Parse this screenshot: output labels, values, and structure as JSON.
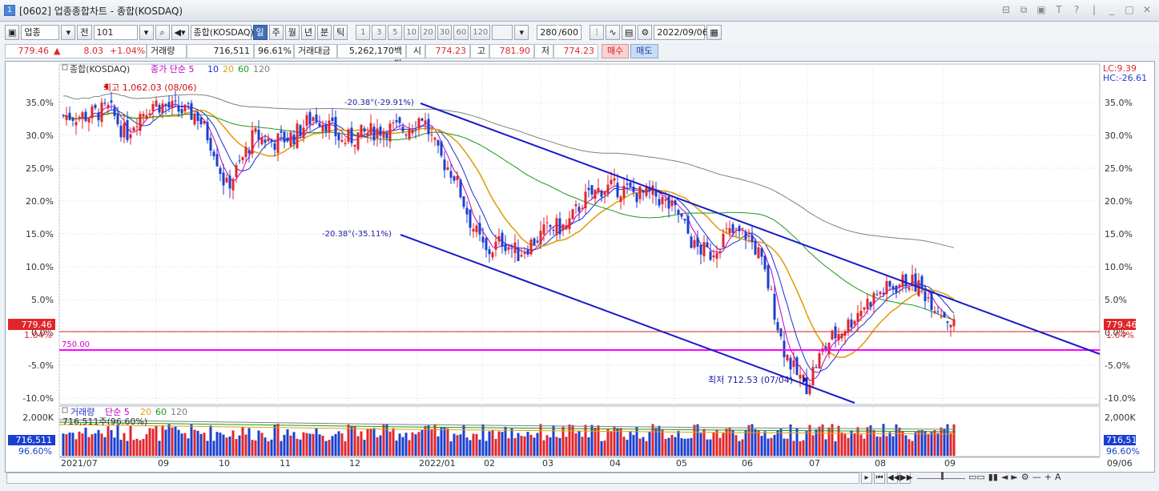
{
  "window": {
    "num": "1",
    "title": "[0602] 업종종합차트 - 종합(KOSDAQ)"
  },
  "toolbar": {
    "market": "업종",
    "prev": "전",
    "code": "101",
    "name": "종합(KOSDAQ)",
    "periods": [
      "일",
      "주",
      "월",
      "년",
      "분",
      "틱"
    ],
    "active_period": "일",
    "intervals": [
      "1",
      "3",
      "5",
      "10",
      "20",
      "30",
      "60",
      "120"
    ],
    "count": "280",
    "count_total": "/600",
    "date": "2022/09/06"
  },
  "info": {
    "price": "779.46",
    "arrow": "▲",
    "change": "8.03",
    "rate": "+1.04%",
    "vol_label": "거래량",
    "volume": "716,511",
    "vol_ratio": "96.61%",
    "amt_label": "거래대금",
    "amount": "5,262,170백만",
    "open_label": "시",
    "open": "774.23",
    "high_label": "고",
    "high": "781.90",
    "low_label": "저",
    "low": "774.23",
    "buy": "매수",
    "sell": "매도"
  },
  "price_panel": {
    "legend_title": "종합(KOSDAQ)",
    "legend_ma": "종가 단순 5",
    "ma_periods": [
      "10",
      "20",
      "60",
      "120"
    ],
    "ma_colors": [
      "#c000c0",
      "#1a2fcf",
      "#e0a010",
      "#1a9a1a",
      "#808080"
    ],
    "lc": "LC:9.39",
    "hc": "HC:-26.61",
    "high_label": "최고 1,062.03 (08/06)",
    "low_label": "최저 712.53 (07/04)",
    "trend1_label": "-20.38°(-29.91%)",
    "trend2_label": "-20.38°(-35.11%)",
    "hline_label": "750.00",
    "current_price": "779.46",
    "current_rate": "1.04%",
    "yticks": [
      "35.0%",
      "30.0%",
      "25.0%",
      "20.0%",
      "15.0%",
      "10.0%",
      "5.0%",
      "0.0%",
      "-5.0%",
      "-10.0%"
    ],
    "ytick_values": [
      35,
      30,
      25,
      20,
      15,
      10,
      5,
      0,
      -5,
      -10
    ]
  },
  "volume_panel": {
    "legend_title": "거래량",
    "legend_ma": "단순 5",
    "ma_periods": [
      "20",
      "60",
      "120"
    ],
    "sub_label": "716,511주(96.60%)",
    "ytick": "2,000K",
    "current": "716,511",
    "ratio": "96.60%"
  },
  "xaxis": {
    "labels": [
      "2021/07",
      "09",
      "10",
      "11",
      "12",
      "2022/01",
      "02",
      "03",
      "04",
      "05",
      "06",
      "07",
      "08",
      "09"
    ],
    "right_label": "09/06"
  },
  "colors": {
    "up": "#e0262b",
    "down": "#1a3fd0",
    "hline": "#ff00ff",
    "trend": "#1a1ac8",
    "accent": "#3f6fb6"
  }
}
